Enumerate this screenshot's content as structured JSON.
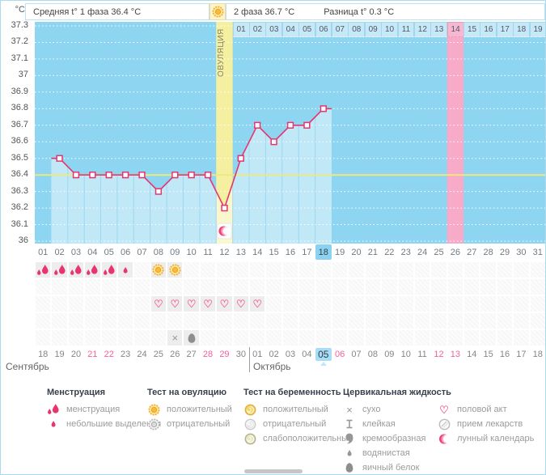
{
  "header": {
    "unit_label": "°С",
    "phase1": "Средняя t° 1 фаза 36.4 °С",
    "phase2": "2 фаза 36.7 °С",
    "difference": "Разница t° 0.3 °С"
  },
  "chart_data": {
    "type": "line",
    "ylabel": "°С",
    "ylim": [
      36,
      37.3
    ],
    "y_ticks": [
      "37.3",
      "37.2",
      "37.1",
      "37",
      "36.9",
      "36.8",
      "36.7",
      "36.6",
      "36.5",
      "36.4",
      "36.3",
      "36.2",
      "36.1",
      "36"
    ],
    "avg_phase1_line": 36.4,
    "total_cycle_days": 31,
    "cycle_day_labels": [
      "01",
      "02",
      "03",
      "04",
      "05",
      "06",
      "07",
      "08",
      "09",
      "10",
      "11",
      "12",
      "13",
      "14",
      "15",
      "16",
      "17",
      "18",
      "19",
      "20",
      "21",
      "22",
      "23",
      "24",
      "25",
      "26",
      "27",
      "28",
      "29",
      "30",
      "31"
    ],
    "selected_cycle_day": 18,
    "series": [
      {
        "name": "температура",
        "days": [
          2,
          3,
          4,
          5,
          6,
          7,
          8,
          9,
          10,
          11,
          12,
          13,
          14,
          15,
          16,
          17,
          18
        ],
        "temps": [
          36.5,
          36.4,
          36.4,
          36.4,
          36.4,
          36.4,
          36.3,
          36.4,
          36.4,
          36.4,
          36.2,
          36.5,
          36.7,
          36.6,
          36.7,
          36.7,
          36.8
        ]
      }
    ],
    "ovulation": {
      "day": 12,
      "label": "ОВУЛЯЦИЯ"
    },
    "moon_marker_day": 12,
    "pink_column_day": 26,
    "top_dates": {
      "first_cycle_day": 13,
      "labels": [
        "01",
        "02",
        "03",
        "04",
        "05",
        "06",
        "07",
        "08",
        "09",
        "10",
        "11",
        "12",
        "13",
        "14",
        "15",
        "16",
        "17",
        "18",
        "19"
      ],
      "pink_labels": [
        "14"
      ]
    }
  },
  "symbol_rows": [
    {
      "name": "menstruation-and-ovulation-test",
      "cells": [
        {
          "day": 1,
          "icon": "drop-double"
        },
        {
          "day": 2,
          "icon": "drop-double"
        },
        {
          "day": 3,
          "icon": "drop-double"
        },
        {
          "day": 4,
          "icon": "drop-double"
        },
        {
          "day": 5,
          "icon": "drop-double"
        },
        {
          "day": 6,
          "icon": "drop-small"
        },
        {
          "day": 8,
          "icon": "sun"
        },
        {
          "day": 9,
          "icon": "sun"
        }
      ]
    },
    {
      "name": "pregnancy-test",
      "cells": []
    },
    {
      "name": "intercourse",
      "cells": [
        {
          "day": 8,
          "icon": "heart"
        },
        {
          "day": 9,
          "icon": "heart"
        },
        {
          "day": 10,
          "icon": "heart"
        },
        {
          "day": 11,
          "icon": "heart"
        },
        {
          "day": 12,
          "icon": "heart"
        },
        {
          "day": 13,
          "icon": "heart"
        },
        {
          "day": 14,
          "icon": "heart"
        }
      ]
    },
    {
      "name": "medication",
      "cells": []
    },
    {
      "name": "cervical-fluid",
      "cells": [
        {
          "day": 9,
          "icon": "dry-x"
        },
        {
          "day": 10,
          "icon": "egg-white"
        }
      ]
    }
  ],
  "calendar": {
    "september": {
      "label": "Сентябрь",
      "first_cycle_day": 1,
      "days": [
        "18",
        "19",
        "20",
        "21",
        "22",
        "23",
        "24",
        "25",
        "26",
        "27",
        "28",
        "29",
        "30"
      ],
      "pink": [
        "21",
        "22",
        "28",
        "29"
      ]
    },
    "october": {
      "label": "Октябрь",
      "first_cycle_day": 14,
      "days": [
        "01",
        "02",
        "03",
        "04",
        "05",
        "06",
        "07",
        "08",
        "09",
        "10",
        "11",
        "12",
        "13",
        "14",
        "15",
        "16",
        "17",
        "18"
      ],
      "pink": [
        "06",
        "12",
        "13"
      ],
      "today": "05"
    }
  },
  "legend": {
    "columns": [
      {
        "title": "Менструация",
        "items": [
          {
            "icon": "drop-double",
            "label": "менструация"
          },
          {
            "icon": "drop-small",
            "label": "небольшие выделения"
          }
        ]
      },
      {
        "title": "Тест на овуляцию",
        "items": [
          {
            "icon": "sun",
            "label": "положительный"
          },
          {
            "icon": "circle-negative",
            "label": "отрицательный"
          }
        ]
      },
      {
        "title": "Тест на беременность",
        "items": [
          {
            "icon": "shell-positive",
            "label": "положительный"
          },
          {
            "icon": "shell-negative",
            "label": "отрицательный"
          },
          {
            "icon": "shell-weak",
            "label": "слабоположительный"
          }
        ]
      },
      {
        "title": "Цервикальная жидкость",
        "items": [
          {
            "icon": "dry-x",
            "label": "сухо"
          },
          {
            "icon": "sticky",
            "label": "клейкая"
          },
          {
            "icon": "creamy",
            "label": "кремообразная"
          },
          {
            "icon": "watery",
            "label": "водянистая"
          },
          {
            "icon": "egg-white",
            "label": "яичный белок"
          }
        ]
      },
      {
        "title": "",
        "items": [
          {
            "icon": "heart",
            "label": "половой акт"
          },
          {
            "icon": "pill",
            "label": "прием лекарств"
          },
          {
            "icon": "moon",
            "label": "лунный календарь"
          }
        ]
      }
    ]
  },
  "colors": {
    "sky": "#8ed5f1",
    "band_yellow": "#f5f0a0",
    "band_pink": "#f8abc9",
    "temp_line": "#e5356e",
    "avg_line": "#efe87c",
    "highlight_blue": "#8bd2f1",
    "pink_text": "#f2609e",
    "icon_pink": "#e8356d",
    "icon_grey": "#979797"
  }
}
